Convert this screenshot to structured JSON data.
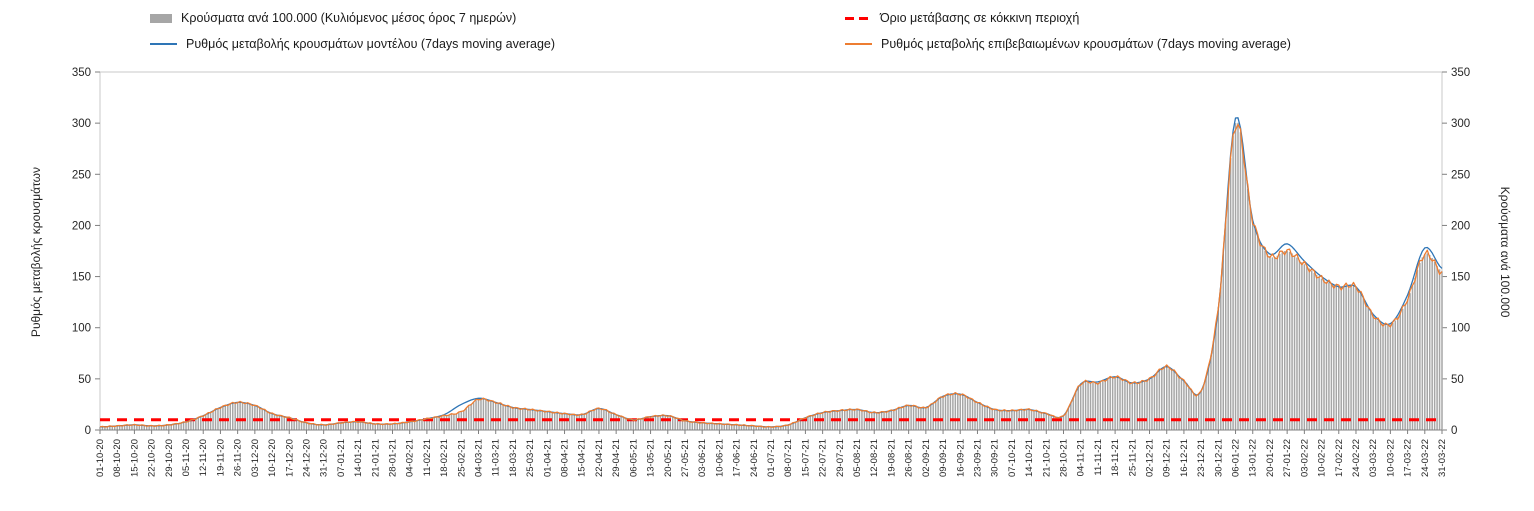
{
  "legend": {
    "bars": "Κρούσματα ανά 100.000 (Κυλιόμενος μέσος όρος 7 ημερών)",
    "threshold": "Όριο μετάβασης σε κόκκινη περιοχή",
    "model": "Ρυθμός μεταβολής κρουσμάτων μοντέλου (7days moving average)",
    "confirmed": "Ρυθμός μεταβολής επιβεβαιωμένων κρουσμάτων (7days moving average)"
  },
  "axes": {
    "left_label": "Ρυθμός μεταβολής κρουσμάτων",
    "right_label": "Κρούσματα ανά 100.000"
  },
  "colors": {
    "bars": "#a6a6a6",
    "threshold": "#ff0000",
    "model": "#2e75b6",
    "confirmed": "#ed7d31",
    "frame": "#c9c9c9",
    "axis": "#7f7f7f",
    "tick_text": "#262626"
  },
  "chart_data": {
    "type": "bar",
    "title": "",
    "xlabel": "",
    "ylabel_left": "Ρυθμός μεταβολής κρουσμάτων",
    "ylabel_right": "Κρούσματα ανά 100.000",
    "ylim": [
      0,
      350
    ],
    "y_ticks": [
      0,
      50,
      100,
      150,
      200,
      250,
      300,
      350
    ],
    "grid": false,
    "legend_position": "top",
    "x": [
      "01-10-20",
      "08-10-20",
      "15-10-20",
      "22-10-20",
      "29-10-20",
      "05-11-20",
      "12-11-20",
      "19-11-20",
      "26-11-20",
      "03-12-20",
      "10-12-20",
      "17-12-20",
      "24-12-20",
      "31-12-20",
      "07-01-21",
      "14-01-21",
      "21-01-21",
      "28-01-21",
      "04-02-21",
      "11-02-21",
      "18-02-21",
      "25-02-21",
      "04-03-21",
      "11-03-21",
      "18-03-21",
      "25-03-21",
      "01-04-21",
      "08-04-21",
      "15-04-21",
      "22-04-21",
      "29-04-21",
      "06-05-21",
      "13-05-21",
      "20-05-21",
      "27-05-21",
      "03-06-21",
      "10-06-21",
      "17-06-21",
      "24-06-21",
      "01-07-21",
      "08-07-21",
      "15-07-21",
      "22-07-21",
      "29-07-21",
      "05-08-21",
      "12-08-21",
      "19-08-21",
      "26-08-21",
      "02-09-21",
      "09-09-21",
      "16-09-21",
      "23-09-21",
      "30-09-21",
      "07-10-21",
      "14-10-21",
      "21-10-21",
      "28-10-21",
      "04-11-21",
      "11-11-21",
      "18-11-21",
      "25-11-21",
      "02-12-21",
      "09-12-21",
      "16-12-21",
      "23-12-21",
      "30-12-21",
      "06-01-22",
      "13-01-22",
      "20-01-22",
      "27-01-22",
      "03-02-22",
      "10-02-22",
      "17-02-22",
      "24-02-22",
      "03-03-22",
      "10-03-22",
      "17-03-22",
      "24-03-22",
      "31-03-22"
    ],
    "series": [
      {
        "name": "Κρούσματα ανά 100.000 (Κυλιόμενος μέσος όρος 7 ημερών)",
        "type": "bar",
        "values": [
          3,
          4,
          5,
          4,
          5,
          8,
          14,
          22,
          27,
          24,
          16,
          12,
          7,
          5,
          7,
          8,
          6,
          6,
          8,
          11,
          14,
          18,
          30,
          27,
          22,
          20,
          18,
          16,
          15,
          21,
          15,
          10,
          13,
          14,
          9,
          7,
          6,
          5,
          4,
          3,
          5,
          12,
          17,
          19,
          20,
          17,
          19,
          24,
          22,
          33,
          35,
          27,
          20,
          19,
          20,
          16,
          14,
          45,
          46,
          52,
          46,
          50,
          62,
          48,
          38,
          120,
          300,
          205,
          170,
          175,
          162,
          148,
          140,
          140,
          112,
          103,
          128,
          172,
          155
        ]
      },
      {
        "name": "Ρυθμός μεταβολής κρουσμάτων μοντέλου (7days moving average)",
        "type": "line",
        "values": [
          3,
          4,
          5,
          4,
          5,
          8,
          14,
          22,
          27,
          24,
          16,
          12,
          7,
          5,
          7,
          8,
          6,
          6,
          8,
          11,
          15,
          25,
          31,
          27,
          22,
          20,
          18,
          16,
          15,
          21,
          15,
          10,
          13,
          14,
          9,
          7,
          6,
          5,
          4,
          3,
          5,
          12,
          17,
          19,
          20,
          17,
          19,
          24,
          22,
          33,
          35,
          27,
          20,
          19,
          20,
          16,
          14,
          45,
          47,
          52,
          46,
          50,
          62,
          48,
          38,
          118,
          305,
          205,
          172,
          182,
          165,
          150,
          140,
          140,
          113,
          104,
          132,
          178,
          158
        ]
      },
      {
        "name": "Ρυθμός μεταβολής επιβεβαιωμένων κρουσμάτων (7days moving average)",
        "type": "line",
        "values": [
          3,
          4,
          5,
          4,
          5,
          8,
          14,
          22,
          27,
          24,
          16,
          12,
          7,
          5,
          7,
          8,
          6,
          6,
          8,
          11,
          14,
          18,
          30,
          27,
          22,
          20,
          18,
          16,
          15,
          21,
          15,
          10,
          13,
          14,
          9,
          7,
          6,
          5,
          4,
          3,
          5,
          12,
          17,
          19,
          20,
          17,
          19,
          24,
          22,
          33,
          35,
          27,
          20,
          19,
          20,
          16,
          14,
          45,
          46,
          52,
          46,
          50,
          62,
          48,
          38,
          120,
          298,
          205,
          170,
          175,
          162,
          148,
          140,
          140,
          112,
          103,
          128,
          172,
          153
        ]
      },
      {
        "name": "Όριο μετάβασης σε κόκκινη περιοχή",
        "type": "hline",
        "value": 10
      }
    ]
  }
}
